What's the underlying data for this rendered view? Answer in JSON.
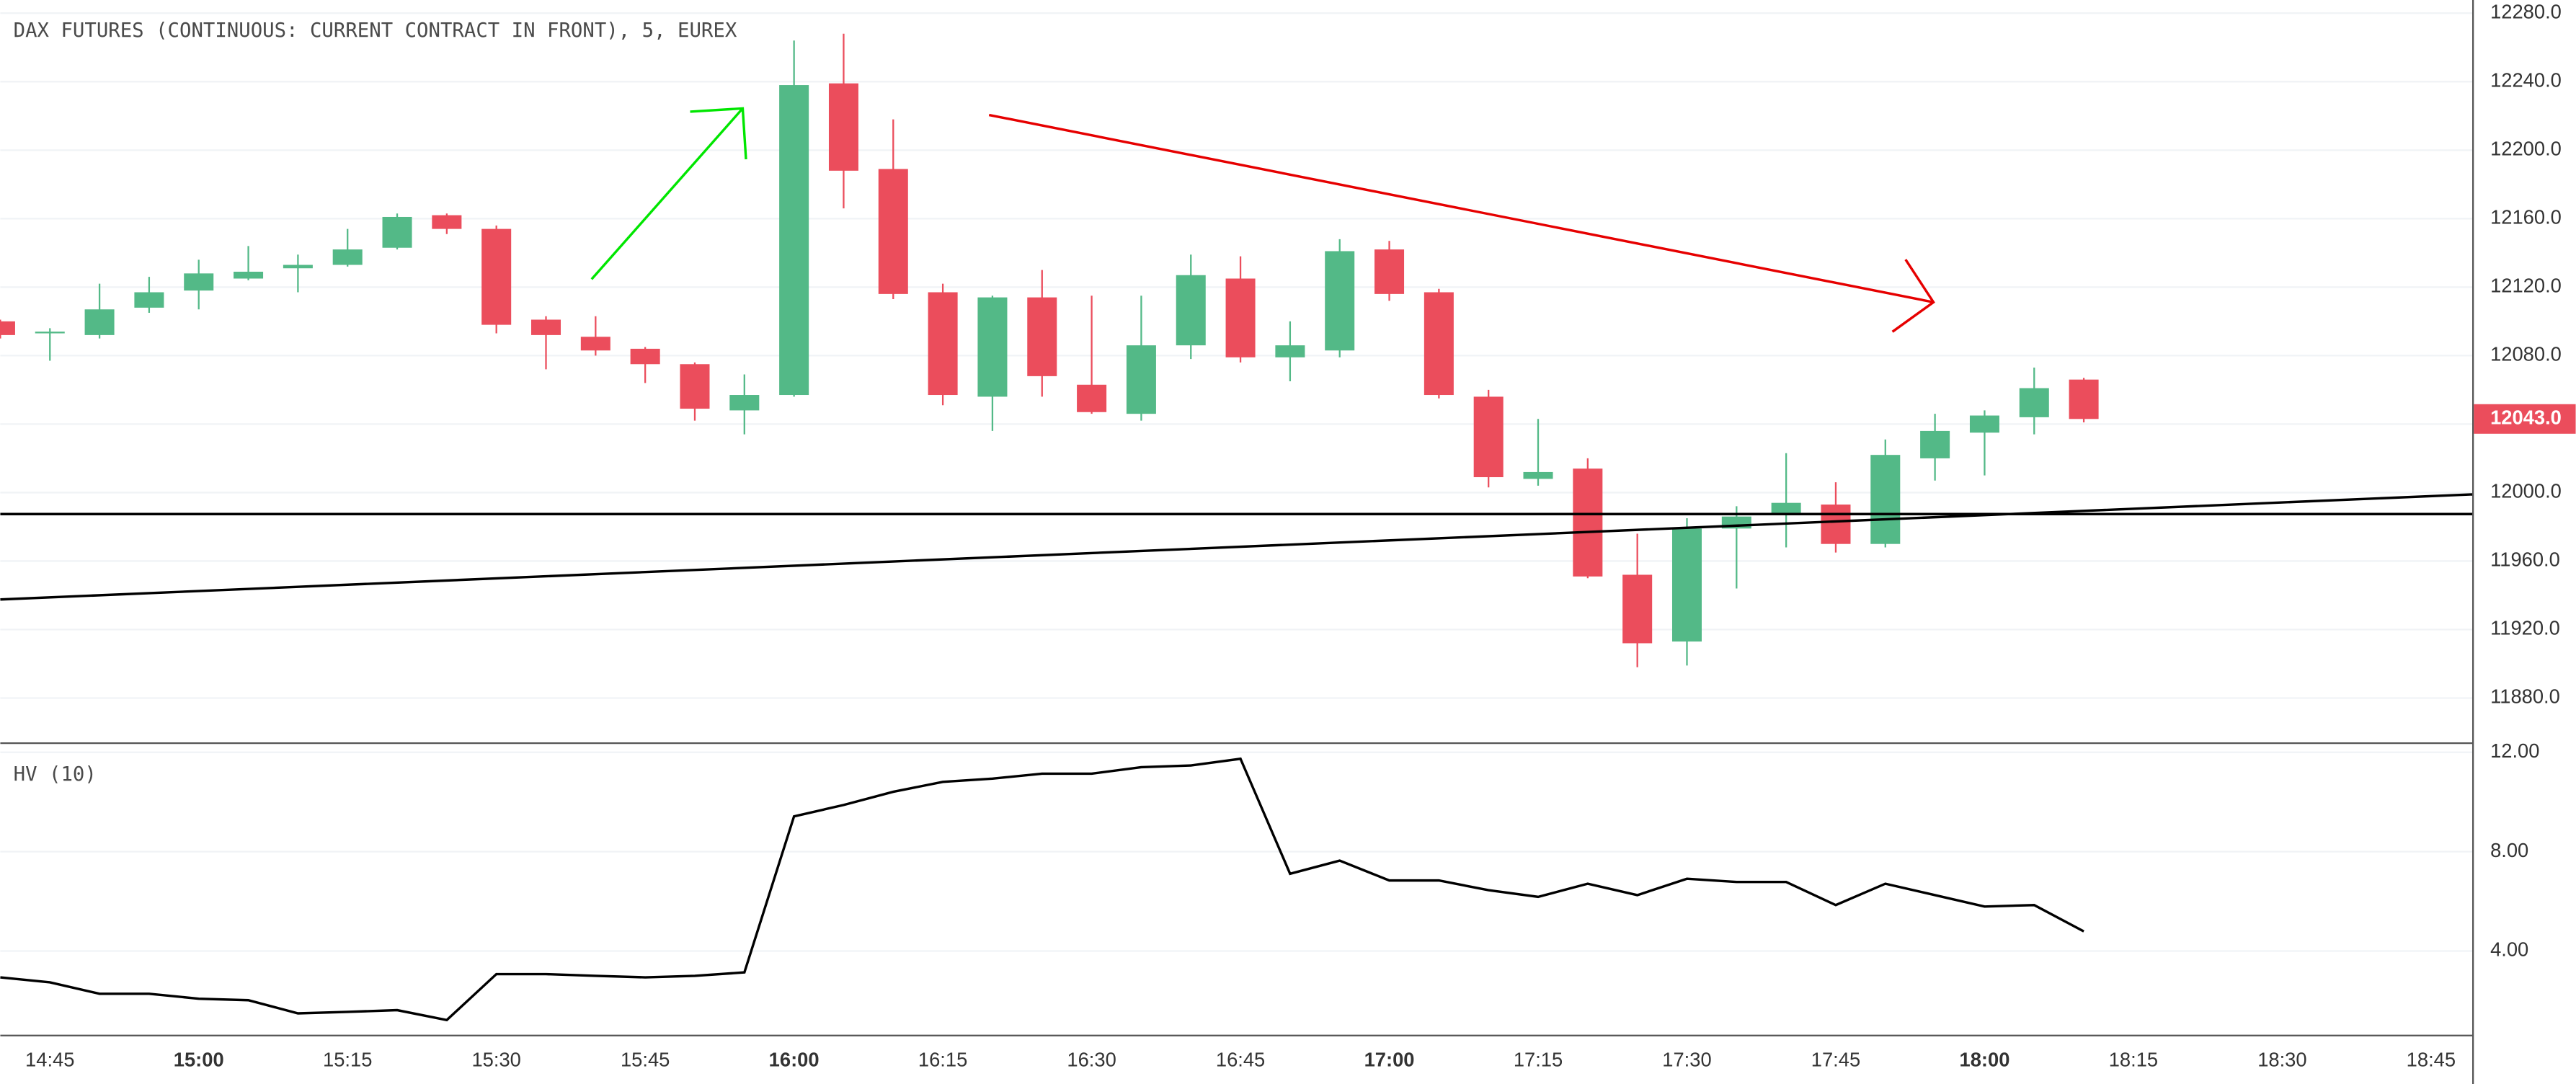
{
  "chart_data": [
    {
      "type": "candlestick",
      "title": "DAX FUTURES (CONTINUOUS: CURRENT CONTRACT IN FRONT), 5, EUREX",
      "up_color": "#53b987",
      "down_color": "#eb4d5c",
      "open": [
        12100,
        12093,
        12092,
        12108,
        12118,
        12125,
        12131,
        12133,
        12143,
        12162,
        12154,
        12101,
        12091,
        12084,
        12075,
        12048,
        12057,
        12239,
        12189,
        12117,
        12056,
        12114,
        12063,
        12046,
        12086,
        12125,
        12079,
        12083,
        12142,
        12117,
        12056,
        12008,
        12014,
        11952,
        11913,
        11979,
        11988,
        11993,
        11970,
        12020,
        12035,
        12044,
        12066
      ],
      "high": [
        12101,
        12096,
        12122,
        12126,
        12136,
        12144,
        12139,
        12154,
        12163,
        12163,
        12156,
        12103,
        12103,
        12085,
        12076,
        12069,
        12264,
        12268,
        12218,
        12122,
        12115,
        12130,
        12115,
        12115,
        12139,
        12138,
        12100,
        12148,
        12147,
        12119,
        12060,
        12043,
        12020,
        11976,
        11985,
        11992,
        12023,
        12006,
        12031,
        12046,
        12048,
        12073,
        12067
      ],
      "low": [
        12090,
        12077,
        12090,
        12105,
        12107,
        12124,
        12117,
        12132,
        12142,
        12151,
        12093,
        12072,
        12080,
        12064,
        12042,
        12034,
        12056,
        12166,
        12113,
        12051,
        12036,
        12056,
        12046,
        12042,
        12078,
        12076,
        12065,
        12079,
        12112,
        12055,
        12003,
        12004,
        11950,
        11898,
        11899,
        11944,
        11968,
        11965,
        11968,
        12007,
        12010,
        12034,
        12041
      ],
      "close": [
        12092,
        12094,
        12107,
        12117,
        12128,
        12129,
        12133,
        12142,
        12161,
        12154,
        12098,
        12092,
        12083,
        12075,
        12049,
        12057,
        12238,
        12188,
        12116,
        12057,
        12114,
        12068,
        12047,
        12086,
        12127,
        12079,
        12086,
        12141,
        12116,
        12057,
        12009,
        12012,
        11951,
        11912,
        11979,
        11986,
        11994,
        11970,
        12022,
        12036,
        12045,
        12061,
        12043
      ],
      "ylim": [
        11854.1,
        12287.7
      ],
      "yticks": [
        {
          "value": 11880,
          "label": "11880.0"
        },
        {
          "value": 11920,
          "label": "11920.0"
        },
        {
          "value": 11960,
          "label": "11960.0"
        },
        {
          "value": 12000,
          "label": "12000.0"
        },
        {
          "value": 12040,
          "label": null
        },
        {
          "value": 12080,
          "label": "12080.0"
        },
        {
          "value": 12120,
          "label": "12120.0"
        },
        {
          "value": 12160,
          "label": "12160.0"
        },
        {
          "value": 12200,
          "label": "12200.0"
        },
        {
          "value": 12240,
          "label": "12240.0"
        },
        {
          "value": 12280,
          "label": "12280.0"
        }
      ],
      "xlim": [
        0,
        49.83
      ],
      "xticks": [
        {
          "value": 1,
          "label": "14:45"
        },
        {
          "value": 4,
          "label": "15:00"
        },
        {
          "value": 7,
          "label": "15:15"
        },
        {
          "value": 10,
          "label": "15:30"
        },
        {
          "value": 13,
          "label": "15:45"
        },
        {
          "value": 16,
          "label": "16:00"
        },
        {
          "value": 19,
          "label": "16:15"
        },
        {
          "value": 22,
          "label": "16:30"
        },
        {
          "value": 25,
          "label": "16:45"
        },
        {
          "value": 28,
          "label": "17:00"
        },
        {
          "value": 31,
          "label": "17:15"
        },
        {
          "value": 34,
          "label": "17:30"
        },
        {
          "value": 37,
          "label": "17:45"
        },
        {
          "value": 40,
          "label": "18:00"
        },
        {
          "value": 43,
          "label": "18:15"
        },
        {
          "value": 46,
          "label": "18:30"
        },
        {
          "value": 49,
          "label": "18:45"
        }
      ],
      "last_price": {
        "value": 12043,
        "label": "12043.0"
      },
      "grid": true
    },
    {
      "type": "line",
      "title": "HV (10)",
      "color": "#000000",
      "values": [
        2.94,
        2.74,
        2.28,
        2.28,
        2.08,
        2.02,
        1.49,
        1.55,
        1.62,
        1.22,
        3.07,
        3.07,
        3.0,
        2.94,
        3.0,
        3.14,
        9.42,
        9.88,
        10.41,
        10.81,
        10.94,
        11.14,
        11.14,
        11.4,
        11.47,
        11.74,
        7.11,
        7.64,
        6.84,
        6.84,
        6.45,
        6.18,
        6.71,
        6.25,
        6.91,
        6.78,
        6.78,
        5.85,
        6.71,
        6.25,
        5.79,
        5.85,
        4.79
      ],
      "ylim": [
        0.63,
        12.4
      ],
      "yticks": [
        {
          "value": 4,
          "label": "4.00"
        },
        {
          "value": 8,
          "label": "8.00"
        },
        {
          "value": 12,
          "label": "12.00"
        }
      ],
      "grid": true
    }
  ]
}
